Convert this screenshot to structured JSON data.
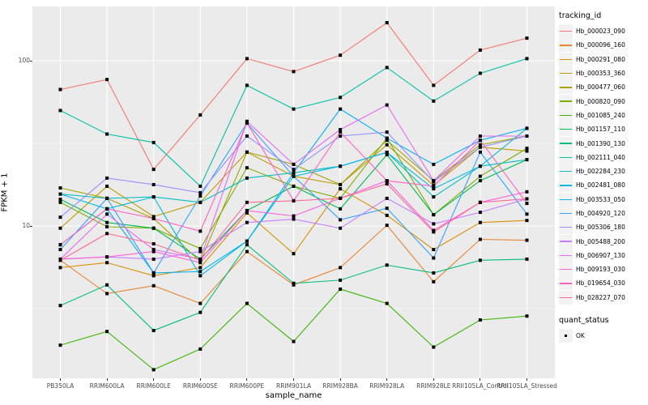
{
  "figure": {
    "panel_bg": "#EBEBEB",
    "grid_major_color": "#FFFFFF",
    "grid_minor_color": "#FFFFFF",
    "tick_color": "#333333",
    "tick_label_color": "#4D4D4D",
    "legend": {
      "line_legend_title": "tracking_id",
      "point_legend_title": "quant_status",
      "point_legend_items": [
        {
          "label": "OK",
          "shape": "filled-black-square"
        }
      ]
    }
  },
  "chart_data": {
    "type": "line",
    "title": "",
    "xlabel": "sample_name",
    "ylabel": "FPKM + 1",
    "y_scale": "log10",
    "ylim": [
      1.2,
      213
    ],
    "y_major_ticks": [
      10,
      100
    ],
    "y_major_tick_labels": [
      "10",
      "100"
    ],
    "y_minor_ticks": [
      3.162,
      31.62
    ],
    "grid": true,
    "legend_position": "right",
    "point_shape": "filled-black-square",
    "categories": [
      "PB350LA",
      "RRIM600LA",
      "RRIM600LE",
      "RRIM600SE",
      "RRIM600PE",
      "RRIM901LA",
      "RRIM928BA",
      "RRIM928LA",
      "RRIM928LE",
      "RRII105LA_Control",
      "RRII105LA_Stressed"
    ],
    "series": [
      {
        "name": "Hb_000023_090",
        "color": "#F8766D",
        "values": [
          67,
          77,
          22,
          47,
          103,
          86,
          108,
          170,
          71,
          116,
          137
        ]
      },
      {
        "name": "Hb_000096_160",
        "color": "#EA8331",
        "values": [
          6.2,
          3.9,
          4.35,
          3.4,
          7.0,
          4.4,
          5.6,
          10.1,
          4.6,
          8.3,
          8.2
        ]
      },
      {
        "name": "Hb_000291_080",
        "color": "#D89000",
        "values": [
          5.6,
          6.0,
          5.0,
          5.6,
          12.0,
          6.8,
          16.8,
          11.6,
          7.2,
          10.5,
          10.8
        ]
      },
      {
        "name": "Hb_000353_360",
        "color": "#C09B00",
        "values": [
          9.7,
          17.4,
          11.4,
          13.9,
          28,
          20,
          17.8,
          31,
          17.6,
          30,
          28.4
        ]
      },
      {
        "name": "Hb_000477_060",
        "color": "#A3A500",
        "values": [
          17,
          14.7,
          11.1,
          6.1,
          28,
          23.6,
          17.8,
          33,
          18.8,
          31,
          35
        ]
      },
      {
        "name": "Hb_000820_090",
        "color": "#7CAE00",
        "values": [
          13.9,
          9.9,
          9.7,
          7.3,
          22.5,
          17.4,
          14.7,
          34,
          11.7,
          20,
          29.5
        ]
      },
      {
        "name": "Hb_001085_240",
        "color": "#39B600",
        "values": [
          1.9,
          2.3,
          1.35,
          1.8,
          3.4,
          2.0,
          4.15,
          3.4,
          1.85,
          2.7,
          2.85
        ]
      },
      {
        "name": "Hb_001157_110",
        "color": "#00BB4E",
        "values": [
          14.5,
          10.5,
          9.7,
          6.3,
          12.4,
          17.4,
          12.7,
          27,
          11.7,
          18.8,
          25.2
        ]
      },
      {
        "name": "Hb_001390_130",
        "color": "#00BF7D",
        "values": [
          3.3,
          4.4,
          2.33,
          3.0,
          7.7,
          4.5,
          4.7,
          5.8,
          5.2,
          6.2,
          6.3
        ]
      },
      {
        "name": "Hb_002111_040",
        "color": "#00C1A3",
        "values": [
          50,
          36,
          32,
          17.4,
          71,
          51,
          60,
          91,
          57,
          84,
          103
        ]
      },
      {
        "name": "Hb_002284_230",
        "color": "#00BFC4",
        "values": [
          15.6,
          14.7,
          15.0,
          13.9,
          19.5,
          21,
          23,
          27.9,
          15.0,
          23,
          25.2
        ]
      },
      {
        "name": "Hb_002481_080",
        "color": "#00BAE0",
        "values": [
          15.6,
          12.7,
          15.0,
          5.0,
          8.1,
          20,
          23,
          27.9,
          16.8,
          23,
          39
        ]
      },
      {
        "name": "Hb_003533_050",
        "color": "#00B0F6",
        "values": [
          7.7,
          12.7,
          5.2,
          5.3,
          8.1,
          21,
          51,
          34,
          23.6,
          33,
          39
        ]
      },
      {
        "name": "Hb_004920_120",
        "color": "#35A2FF",
        "values": [
          7.2,
          14.7,
          5.2,
          15.2,
          42,
          20,
          10.9,
          12.8,
          6.4,
          28,
          11.8
        ]
      },
      {
        "name": "Hb_005306_180",
        "color": "#9590FF",
        "values": [
          11.3,
          19.5,
          17.8,
          15.9,
          35,
          22,
          35,
          37,
          18.5,
          30,
          35
        ]
      },
      {
        "name": "Hb_005488_200",
        "color": "#C77CFF",
        "values": [
          6.3,
          6.5,
          6.3,
          7.0,
          10.5,
          11,
          9.7,
          14.7,
          10.3,
          12.1,
          14.6
        ]
      },
      {
        "name": "Hb_006907_130",
        "color": "#E76BF3",
        "values": [
          6.3,
          11.8,
          7.2,
          6.3,
          43,
          23.6,
          38.3,
          54,
          18.8,
          35,
          35
        ]
      },
      {
        "name": "Hb_009193_030",
        "color": "#FA62DB",
        "values": [
          6.3,
          6.5,
          7.0,
          6.0,
          12.4,
          11.5,
          14.7,
          18.8,
          9.4,
          13.9,
          16.1
        ]
      },
      {
        "name": "Hb_019654_030",
        "color": "#FF61C2",
        "values": [
          7.7,
          12.7,
          11.1,
          9.3,
          42,
          14.2,
          37,
          18.8,
          17.4,
          33,
          13.7
        ]
      },
      {
        "name": "Hb_028227_070",
        "color": "#FF6A98",
        "values": [
          6.2,
          9.0,
          7.8,
          6.2,
          13.9,
          14.2,
          14.7,
          18,
          9.2,
          13.9,
          14.6
        ]
      }
    ],
    "quant_status": "OK"
  }
}
